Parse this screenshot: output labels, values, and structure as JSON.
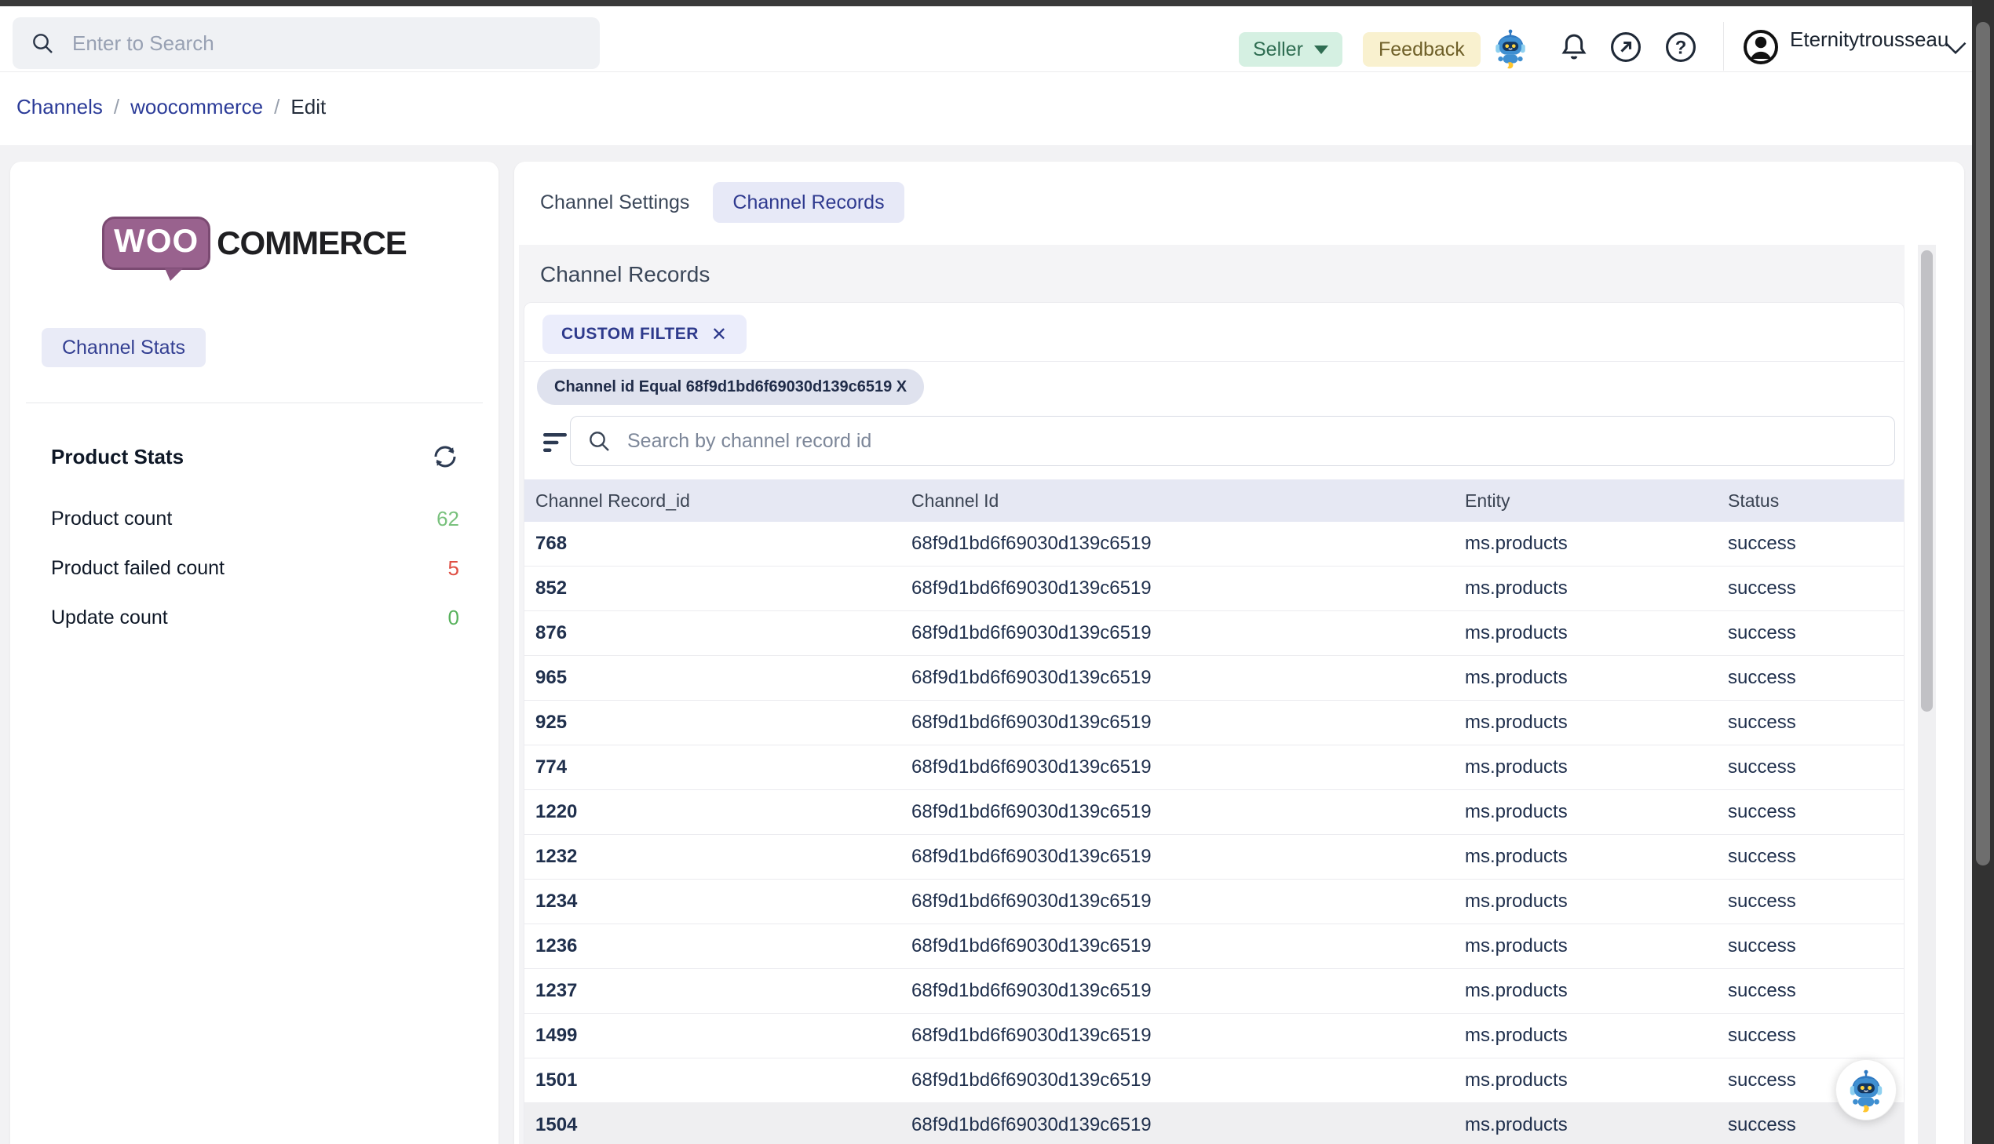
{
  "topbar": {
    "search_placeholder": "Enter to Search",
    "seller_label": "Seller",
    "feedback_label": "Feedback",
    "username": "Eternitytrousseau"
  },
  "breadcrumb": {
    "items": [
      "Channels",
      "woocommerce",
      "Edit"
    ],
    "separator": "/"
  },
  "sidebar": {
    "logo": {
      "woo": "WOO",
      "commerce": "COMMERCE"
    },
    "channel_stats_button": "Channel Stats",
    "product_stats": {
      "title": "Product Stats",
      "rows": [
        {
          "label": "Product count",
          "value": "62",
          "color": "#79c17d"
        },
        {
          "label": "Product failed count",
          "value": "5",
          "color": "#df5045"
        },
        {
          "label": "Update count",
          "value": "0",
          "color": "#56b15b"
        }
      ]
    }
  },
  "main": {
    "tabs": [
      {
        "label": "Channel Settings",
        "active": false
      },
      {
        "label": "Channel Records",
        "active": true
      }
    ],
    "panel": {
      "title": "Channel Records",
      "custom_filter_chip": "CUSTOM FILTER",
      "custom_filter_close": "✕",
      "filter_condition_chip": "Channel id Equal 68f9d1bd6f69030d139c6519 X",
      "search_placeholder": "Search by channel record id",
      "table": {
        "columns": [
          "Channel Record_id",
          "Channel Id",
          "Entity",
          "Status"
        ],
        "rows": [
          {
            "record_id": "768",
            "channel_id": "68f9d1bd6f69030d139c6519",
            "entity": "ms.products",
            "status": "success",
            "shaded": false
          },
          {
            "record_id": "852",
            "channel_id": "68f9d1bd6f69030d139c6519",
            "entity": "ms.products",
            "status": "success",
            "shaded": false
          },
          {
            "record_id": "876",
            "channel_id": "68f9d1bd6f69030d139c6519",
            "entity": "ms.products",
            "status": "success",
            "shaded": false
          },
          {
            "record_id": "965",
            "channel_id": "68f9d1bd6f69030d139c6519",
            "entity": "ms.products",
            "status": "success",
            "shaded": false
          },
          {
            "record_id": "925",
            "channel_id": "68f9d1bd6f69030d139c6519",
            "entity": "ms.products",
            "status": "success",
            "shaded": false
          },
          {
            "record_id": "774",
            "channel_id": "68f9d1bd6f69030d139c6519",
            "entity": "ms.products",
            "status": "success",
            "shaded": false
          },
          {
            "record_id": "1220",
            "channel_id": "68f9d1bd6f69030d139c6519",
            "entity": "ms.products",
            "status": "success",
            "shaded": false
          },
          {
            "record_id": "1232",
            "channel_id": "68f9d1bd6f69030d139c6519",
            "entity": "ms.products",
            "status": "success",
            "shaded": false
          },
          {
            "record_id": "1234",
            "channel_id": "68f9d1bd6f69030d139c6519",
            "entity": "ms.products",
            "status": "success",
            "shaded": false
          },
          {
            "record_id": "1236",
            "channel_id": "68f9d1bd6f69030d139c6519",
            "entity": "ms.products",
            "status": "success",
            "shaded": false
          },
          {
            "record_id": "1237",
            "channel_id": "68f9d1bd6f69030d139c6519",
            "entity": "ms.products",
            "status": "success",
            "shaded": false
          },
          {
            "record_id": "1499",
            "channel_id": "68f9d1bd6f69030d139c6519",
            "entity": "ms.products",
            "status": "success",
            "shaded": false
          },
          {
            "record_id": "1501",
            "channel_id": "68f9d1bd6f69030d139c6519",
            "entity": "ms.products",
            "status": "success",
            "shaded": false
          },
          {
            "record_id": "1504",
            "channel_id": "68f9d1bd6f69030d139c6519",
            "entity": "ms.products",
            "status": "success",
            "shaded": true
          }
        ]
      }
    }
  },
  "colors": {
    "accent_navy": "#2f3a8f",
    "green_value": "#79c17d",
    "red_value": "#df5045",
    "seller_bg": "#d5f0e2",
    "feedback_bg": "#f9f1cf",
    "table_header_bg": "#e6e8f3"
  }
}
